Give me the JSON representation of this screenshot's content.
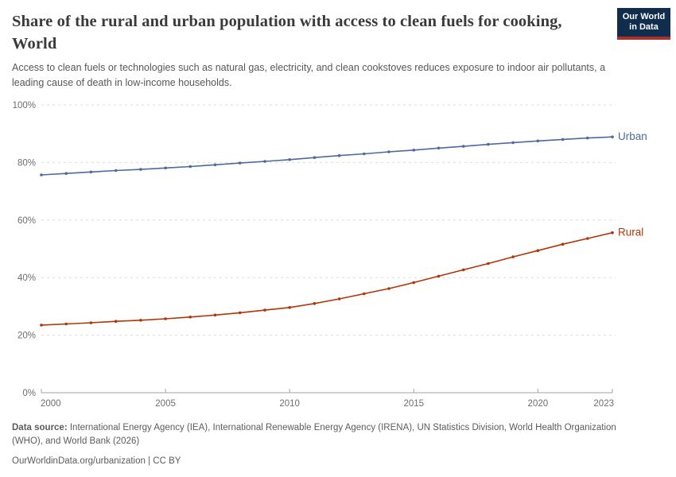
{
  "header": {
    "title": "Share of the rural and urban population with access to clean fuels for cooking, World",
    "subtitle": "Access to clean fuels or technologies such as natural gas, electricity, and clean cookstoves reduces exposure to indoor air pollutants, a leading cause of death in low-income households.",
    "logo": {
      "line1": "Our World",
      "line2": "in Data",
      "bg_color": "#102D4E",
      "accent_color": "#AC3129"
    }
  },
  "chart_data": {
    "type": "line",
    "title": "Share of the rural and urban population with access to clean fuels for cooking, World",
    "xlabel": "",
    "ylabel": "",
    "xlim": [
      2000,
      2023
    ],
    "ylim": [
      0,
      100
    ],
    "grid": "horizontal-dashed",
    "legend_position": "end-of-line-labels",
    "x_ticks": [
      2000,
      2005,
      2010,
      2015,
      2020,
      2023
    ],
    "y_ticks": [
      "0%",
      "20%",
      "40%",
      "60%",
      "80%",
      "100%"
    ],
    "x": [
      2000,
      2001,
      2002,
      2003,
      2004,
      2005,
      2006,
      2007,
      2008,
      2009,
      2010,
      2011,
      2012,
      2013,
      2014,
      2015,
      2016,
      2017,
      2018,
      2019,
      2020,
      2021,
      2022,
      2023
    ],
    "series": [
      {
        "name": "Urban",
        "color": "#4C6A9C",
        "values": [
          75.7,
          76.2,
          76.7,
          77.2,
          77.6,
          78.1,
          78.6,
          79.2,
          79.8,
          80.4,
          81.0,
          81.7,
          82.4,
          83.0,
          83.7,
          84.3,
          85.0,
          85.6,
          86.3,
          86.9,
          87.5,
          88.0,
          88.5,
          88.9
        ]
      },
      {
        "name": "Rural",
        "color": "#B13507",
        "values": [
          23.5,
          23.9,
          24.3,
          24.8,
          25.2,
          25.7,
          26.3,
          27.0,
          27.8,
          28.7,
          29.6,
          31.0,
          32.6,
          34.4,
          36.2,
          38.3,
          40.5,
          42.7,
          44.9,
          47.2,
          49.4,
          51.6,
          53.6,
          55.6
        ]
      }
    ],
    "style": {
      "gridline_color": "#dcdcdc",
      "axis_color": "#a3a3a3",
      "tick_label_color": "#6e6e6e"
    }
  },
  "footer": {
    "source_label": "Data source:",
    "source_text": " International Energy Agency (IEA), International Renewable Energy Agency (IRENA), UN Statistics Division, World Health Organization (WHO), and World Bank (2026)",
    "url": "OurWorldinData.org/urbanization",
    "separator": " | ",
    "license": "CC BY"
  }
}
